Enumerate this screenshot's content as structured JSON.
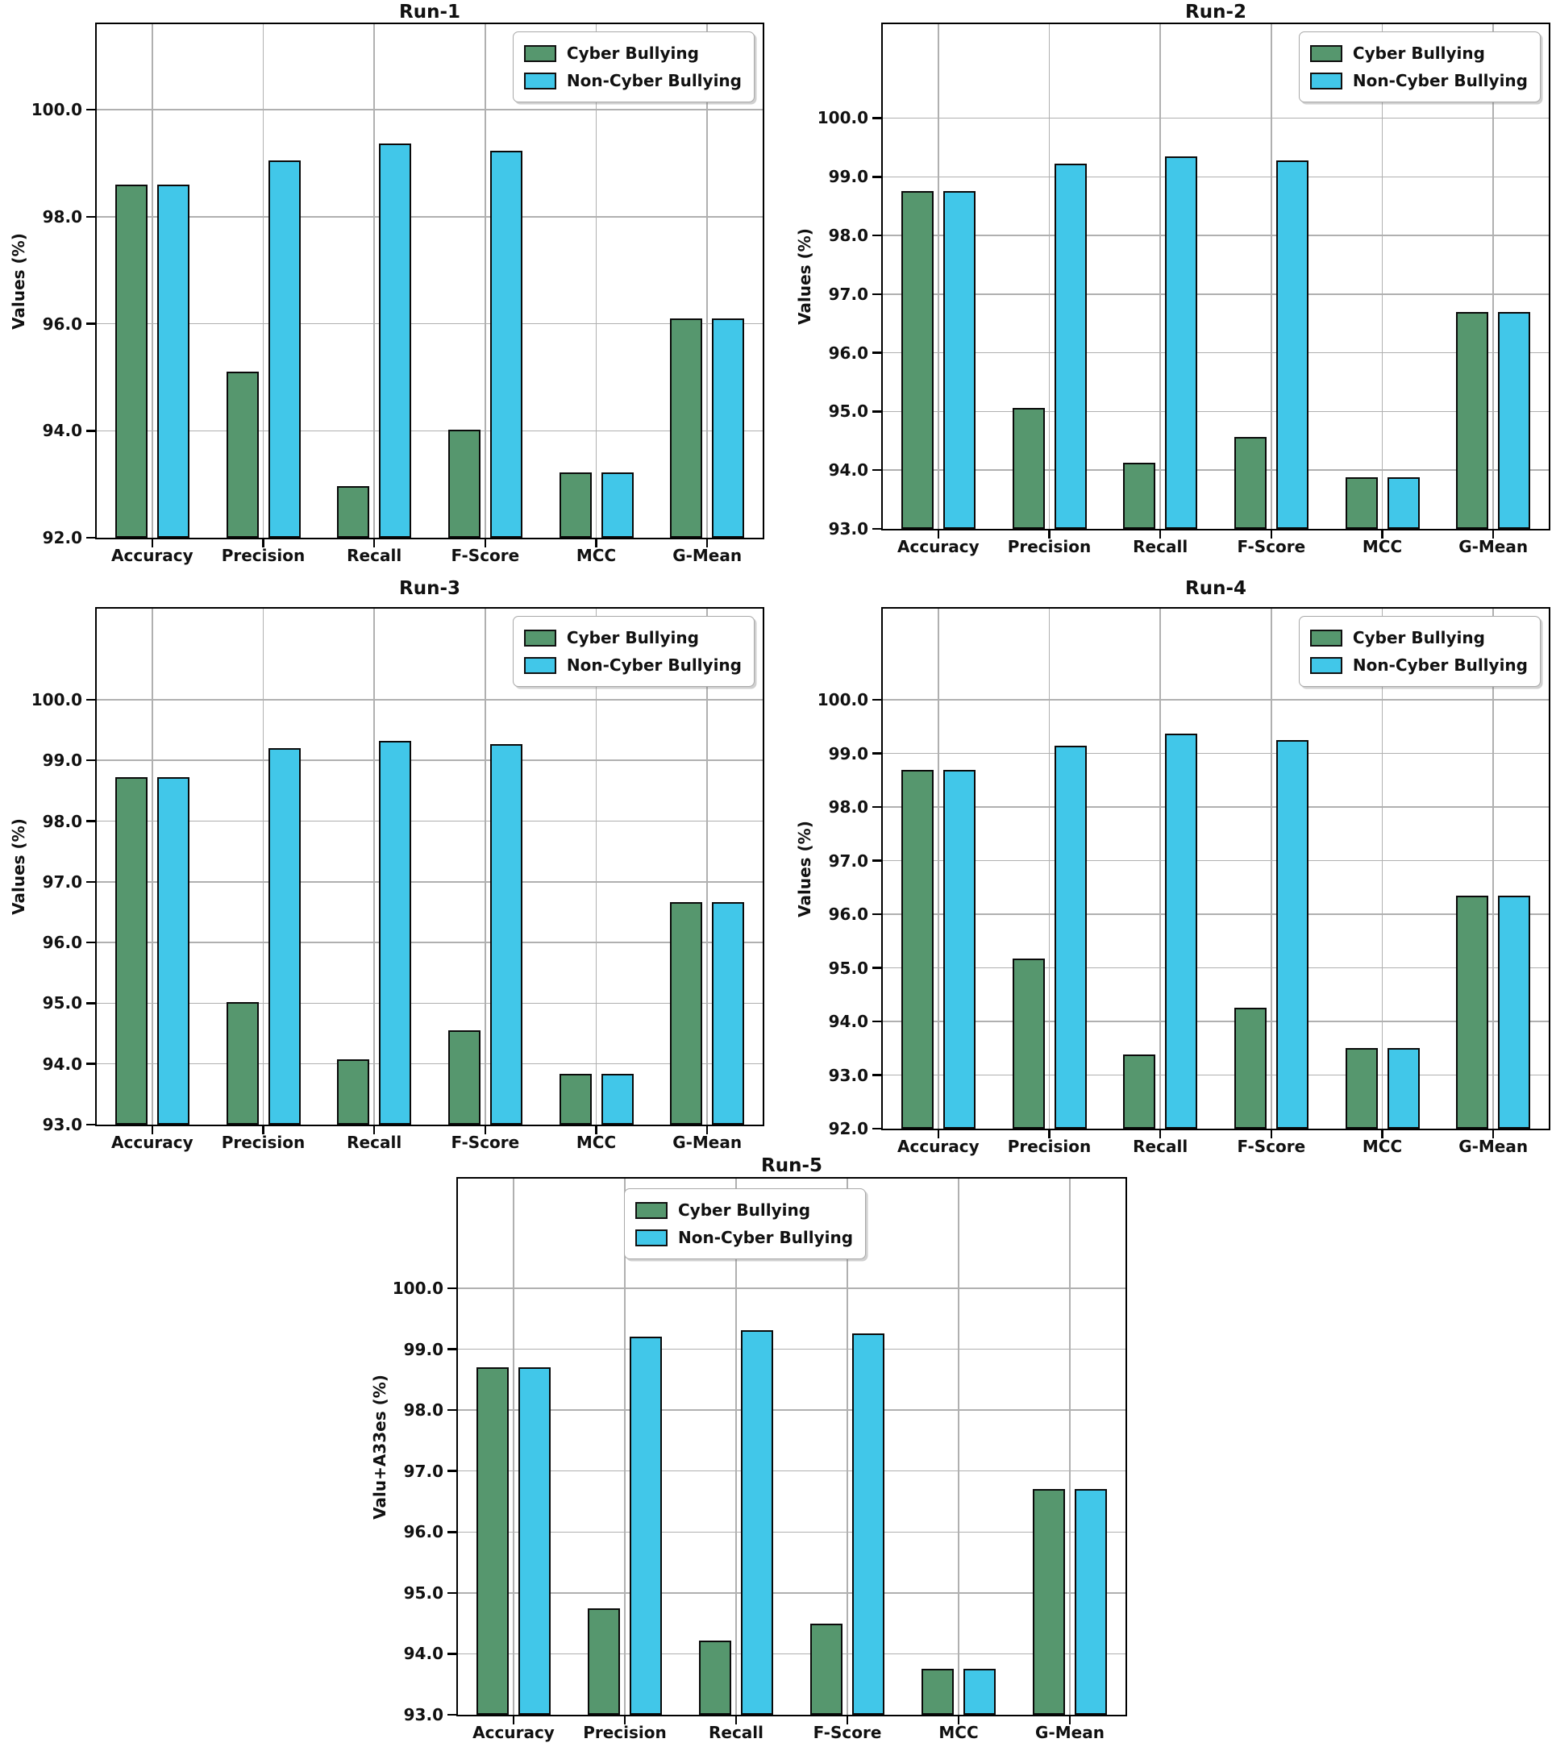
{
  "figure": {
    "background": "#ffffff",
    "grid_color": "#b0b0b0",
    "axis_color": "#000000",
    "legend_items": [
      {
        "label": "Cyber Bullying",
        "color": "#56976E"
      },
      {
        "label": "Non-Cyber Bullying",
        "color": "#41C7E9"
      }
    ]
  },
  "chart_data": [
    {
      "type": "bar",
      "title": "Run-1",
      "ylabel": "Values (%)",
      "xlabel": "",
      "categories": [
        "Accuracy",
        "Precision",
        "Recall",
        "F-Score",
        "MCC",
        "G-Mean"
      ],
      "series": [
        {
          "name": "Cyber Bullying",
          "color": "#56976E",
          "values": [
            98.6,
            95.1,
            92.96,
            94.02,
            93.22,
            96.1
          ]
        },
        {
          "name": "Non-Cyber Bullying",
          "color": "#41C7E9",
          "values": [
            98.6,
            99.05,
            99.37,
            99.23,
            93.22,
            96.1
          ]
        }
      ],
      "ylim": [
        92.0,
        101.6
      ],
      "yticks": [
        92.0,
        94.0,
        96.0,
        98.0,
        100.0
      ],
      "grid": true,
      "legend_position": "upper-right"
    },
    {
      "type": "bar",
      "title": "Run-2",
      "ylabel": "Values (%)",
      "xlabel": "",
      "categories": [
        "Accuracy",
        "Precision",
        "Recall",
        "F-Score",
        "MCC",
        "G-Mean"
      ],
      "series": [
        {
          "name": "Cyber Bullying",
          "color": "#56976E",
          "values": [
            98.75,
            95.06,
            94.12,
            94.56,
            93.88,
            96.69
          ]
        },
        {
          "name": "Non-Cyber Bullying",
          "color": "#41C7E9",
          "values": [
            98.75,
            99.22,
            99.35,
            99.28,
            93.88,
            96.69
          ]
        }
      ],
      "ylim": [
        93.0,
        101.6
      ],
      "yticks": [
        93.0,
        94.0,
        95.0,
        96.0,
        97.0,
        98.0,
        99.0,
        100.0
      ],
      "grid": true,
      "legend_position": "upper-right"
    },
    {
      "type": "bar",
      "title": "Run-3",
      "ylabel": "Values (%)",
      "xlabel": "",
      "categories": [
        "Accuracy",
        "Precision",
        "Recall",
        "F-Score",
        "MCC",
        "G-Mean"
      ],
      "series": [
        {
          "name": "Cyber Bullying",
          "color": "#56976E",
          "values": [
            98.73,
            95.02,
            94.08,
            94.55,
            93.84,
            96.66
          ]
        },
        {
          "name": "Non-Cyber Bullying",
          "color": "#41C7E9",
          "values": [
            98.73,
            99.2,
            99.32,
            99.27,
            93.84,
            96.66
          ]
        }
      ],
      "ylim": [
        93.0,
        101.5
      ],
      "yticks": [
        93.0,
        94.0,
        95.0,
        96.0,
        97.0,
        98.0,
        99.0,
        100.0
      ],
      "grid": true,
      "legend_position": "upper-right"
    },
    {
      "type": "bar",
      "title": "Run-4",
      "ylabel": "Values (%)",
      "xlabel": "",
      "categories": [
        "Accuracy",
        "Precision",
        "Recall",
        "F-Score",
        "MCC",
        "G-Mean"
      ],
      "series": [
        {
          "name": "Cyber Bullying",
          "color": "#56976E",
          "values": [
            98.69,
            95.18,
            93.39,
            94.25,
            93.5,
            96.35
          ]
        },
        {
          "name": "Non-Cyber Bullying",
          "color": "#41C7E9",
          "values": [
            98.69,
            99.14,
            99.37,
            99.25,
            93.5,
            96.35
          ]
        }
      ],
      "ylim": [
        92.0,
        101.7
      ],
      "yticks": [
        92.0,
        93.0,
        94.0,
        95.0,
        96.0,
        97.0,
        98.0,
        99.0,
        100.0
      ],
      "grid": true,
      "legend_position": "upper-right"
    },
    {
      "type": "bar",
      "title": "Run-5",
      "ylabel": "Valu+A33es (%)",
      "xlabel": "",
      "categories": [
        "Accuracy",
        "Precision",
        "Recall",
        "F-Score",
        "MCC",
        "G-Mean"
      ],
      "series": [
        {
          "name": "Cyber Bullying",
          "color": "#56976E",
          "values": [
            98.71,
            94.75,
            94.22,
            94.49,
            93.75,
            96.7
          ]
        },
        {
          "name": "Non-Cyber Bullying",
          "color": "#41C7E9",
          "values": [
            98.71,
            99.21,
            99.31,
            99.26,
            93.75,
            96.7
          ]
        }
      ],
      "ylim": [
        93.0,
        101.8
      ],
      "yticks": [
        93.0,
        94.0,
        95.0,
        96.0,
        97.0,
        98.0,
        99.0,
        100.0
      ],
      "grid": true,
      "legend_position": "upper-center-right"
    }
  ]
}
